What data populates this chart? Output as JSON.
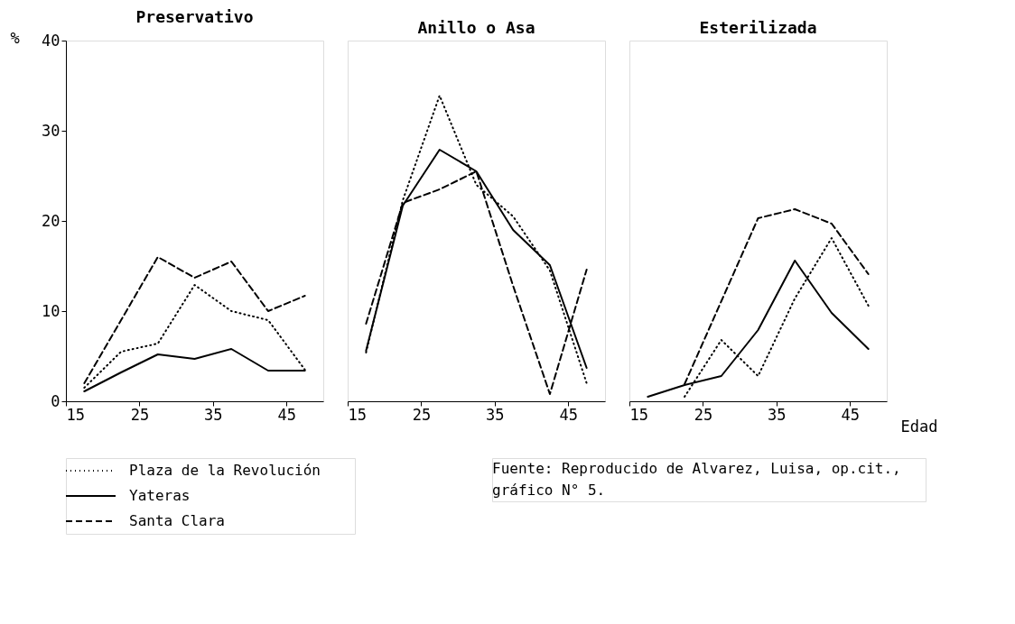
{
  "chart_data": [
    {
      "type": "line",
      "title": "Preservativo",
      "ylabel": "%",
      "x": [
        17.5,
        22.5,
        27.5,
        32.5,
        37.5,
        42.5,
        47.5
      ],
      "xlim": [
        15,
        50
      ],
      "xticks": [
        15,
        25,
        35,
        45
      ],
      "ylim": [
        0,
        40
      ],
      "yticks": [
        0,
        10,
        20,
        30,
        40
      ],
      "grid": false,
      "legend": "bottom left",
      "series": [
        {
          "name": "Plaza de la Revolución",
          "color": "#000000",
          "line_style": "dotted",
          "values": [
            1.5,
            5.5,
            6.4,
            12.9,
            10,
            9,
            3.5
          ]
        },
        {
          "name": "Yateras",
          "color": "#000000",
          "line_style": "solid",
          "values": [
            1.1,
            3.2,
            5.2,
            4.7,
            5.8,
            3.4,
            3.4
          ]
        },
        {
          "name": "Santa Clara",
          "color": "#000000",
          "line_style": "dashed",
          "values": [
            2,
            9,
            16,
            13.7,
            15.5,
            10,
            11.7
          ]
        }
      ]
    },
    {
      "type": "line",
      "title": "Anillo o Asa",
      "x": [
        17.5,
        22.5,
        27.5,
        32.5,
        37.5,
        42.5,
        47.5
      ],
      "xlim": [
        15,
        50
      ],
      "xticks": [
        15,
        25,
        35,
        45
      ],
      "ylim": [
        0,
        40
      ],
      "tick_labels": "x",
      "grid": false,
      "series": [
        {
          "name": "Plaza de la Revolución",
          "color": "#000000",
          "line_style": "dotted",
          "values": [
            5.4,
            22.3,
            33.9,
            24,
            20.5,
            14.5,
            2
          ]
        },
        {
          "name": "Yateras",
          "color": "#000000",
          "line_style": "solid",
          "values": [
            5.6,
            21.7,
            27.9,
            25.5,
            19,
            15.1,
            3.7
          ]
        },
        {
          "name": "Santa Clara",
          "color": "#000000",
          "line_style": "dashed",
          "values": [
            8.6,
            22,
            23.5,
            25.5,
            12.8,
            0.8,
            14.6
          ]
        }
      ]
    },
    {
      "type": "line",
      "title": "Esterilizada",
      "xlabel": "Edad",
      "x": [
        17.5,
        22.5,
        27.5,
        32.5,
        37.5,
        42.5,
        47.5
      ],
      "xlim": [
        15,
        50
      ],
      "xticks": [
        15,
        25,
        35,
        45
      ],
      "ylim": [
        0,
        40
      ],
      "tick_labels": "x",
      "grid": false,
      "annotations": [
        "Fuente: Reproducido de Alvarez, Luisa, op.cit.,",
        "gráfico N° 5."
      ],
      "series": [
        {
          "name": "Plaza de la Revolución",
          "color": "#000000",
          "line_style": "dotted",
          "values": [
            null,
            0.5,
            6.8,
            2.8,
            11.4,
            18.1,
            10.6
          ]
        },
        {
          "name": "Yateras",
          "color": "#000000",
          "line_style": "solid",
          "values": [
            0.5,
            1.8,
            2.8,
            7.9,
            15.6,
            9.8,
            5.8
          ]
        },
        {
          "name": "Santa Clara",
          "color": "#000000",
          "line_style": "dashed",
          "values": [
            null,
            1.9,
            11.1,
            20.3,
            21.3,
            19.7,
            14.1
          ]
        }
      ]
    }
  ]
}
